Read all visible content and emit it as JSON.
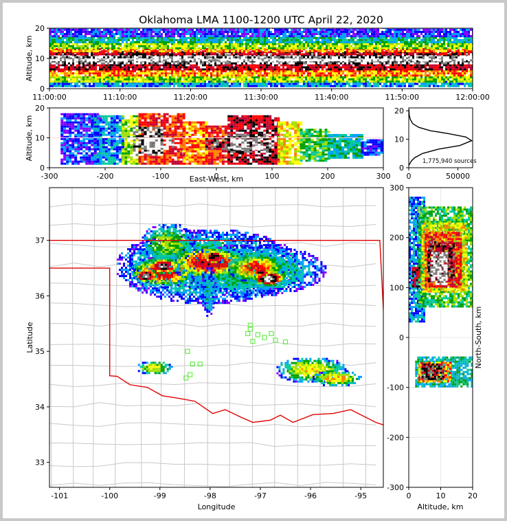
{
  "title": "Oklahoma LMA 1100-1200 UTC April 22, 2020",
  "colors": {
    "state_border": "#e00000",
    "county_lines": "#c8c8c8",
    "stations": "#66ee44",
    "density_scale": [
      "#8000ff",
      "#0000ff",
      "#00a0ff",
      "#00c8a0",
      "#00a000",
      "#a0e000",
      "#ffff00",
      "#ff8000",
      "#ff0000",
      "#c00030",
      "#000000",
      "#808080",
      "#ffffff"
    ]
  },
  "chart_data": [
    {
      "id": "time-height",
      "type": "heatmap",
      "ylabel": "Altitude, km",
      "ylim": [
        0,
        20
      ],
      "xlim": [
        "11:00:00",
        "12:00:00"
      ],
      "x_ticks": [
        "11:00:00",
        "11:10:00",
        "11:20:00",
        "11:30:00",
        "11:40:00",
        "11:50:00",
        "12:00:00"
      ],
      "y_ticks": [
        0,
        10,
        20
      ],
      "layers_km": [
        [
          0.5,
          2,
          2
        ],
        [
          2,
          4,
          5
        ],
        [
          4,
          6,
          7
        ],
        [
          6,
          8,
          9
        ],
        [
          8,
          9,
          11
        ],
        [
          9,
          10,
          12
        ],
        [
          10,
          11,
          11
        ],
        [
          11,
          12,
          9
        ],
        [
          12,
          13,
          7
        ],
        [
          13,
          15,
          5
        ],
        [
          15,
          17,
          3
        ],
        [
          17,
          20,
          1
        ]
      ]
    },
    {
      "id": "ew-altitude",
      "type": "heatmap",
      "xlabel": "East-West, km",
      "ylabel": "Altitude, km",
      "xlim": [
        -300,
        300
      ],
      "ylim": [
        0,
        20
      ],
      "x_ticks": [
        -300,
        -200,
        -100,
        0,
        100,
        200,
        300
      ],
      "y_ticks": [
        0,
        10,
        20
      ],
      "cells": [
        [
          -280,
          -210,
          1,
          18,
          1
        ],
        [
          -220,
          -170,
          1,
          17,
          2
        ],
        [
          -170,
          -140,
          1,
          17,
          5
        ],
        [
          -140,
          -60,
          1,
          18,
          8
        ],
        [
          -60,
          -20,
          1,
          15,
          7
        ],
        [
          -20,
          20,
          1,
          14,
          8
        ],
        [
          20,
          110,
          1,
          17,
          9
        ],
        [
          110,
          150,
          1,
          15,
          6
        ],
        [
          150,
          200,
          2,
          13,
          4
        ],
        [
          200,
          260,
          3,
          11,
          3
        ],
        [
          260,
          295,
          4,
          9,
          1
        ],
        [
          -150,
          -100,
          4,
          13,
          11
        ],
        [
          -130,
          -80,
          6,
          10,
          12
        ],
        [
          -20,
          20,
          6,
          10,
          10
        ],
        [
          20,
          100,
          5,
          11,
          11
        ],
        [
          30,
          80,
          6,
          9,
          12
        ]
      ]
    },
    {
      "id": "altitude-histogram",
      "type": "line",
      "annotation": "1,775,940 sources",
      "xlim": [
        0,
        65000
      ],
      "ylim": [
        0,
        21
      ],
      "x_ticks": [
        0,
        50000
      ],
      "y_ticks": [
        0,
        10,
        20
      ],
      "x": [
        0,
        1200,
        2500,
        6000,
        14000,
        30000,
        52000,
        64000,
        58000,
        40000,
        22000,
        10000,
        4000,
        1500,
        500,
        100
      ],
      "y": [
        0.8,
        1.5,
        2.3,
        3.5,
        5.0,
        6.5,
        7.8,
        9.5,
        10.8,
        12.0,
        13.0,
        14.2,
        15.5,
        17.0,
        18.5,
        20.5
      ]
    },
    {
      "id": "map",
      "type": "heatmap",
      "xlabel": "Longitude",
      "ylabel": "Latitude",
      "xlim": [
        -101.2,
        -94.55
      ],
      "ylim": [
        32.55,
        37.95
      ],
      "x_ticks": [
        -101,
        -100,
        -99,
        -98,
        -97,
        -96,
        -95
      ],
      "y_ticks": [
        33,
        34,
        35,
        36,
        37
      ],
      "stations": [
        [
          -98.45,
          35.0
        ],
        [
          -98.35,
          34.77
        ],
        [
          -98.4,
          34.58
        ],
        [
          -98.48,
          34.52
        ],
        [
          -98.2,
          34.77
        ],
        [
          -97.2,
          35.47
        ],
        [
          -97.05,
          35.3
        ],
        [
          -97.15,
          35.18
        ],
        [
          -97.25,
          35.32
        ],
        [
          -97.2,
          35.4
        ],
        [
          -96.92,
          35.25
        ],
        [
          -96.78,
          35.32
        ],
        [
          -96.7,
          35.2
        ],
        [
          -96.5,
          35.17
        ]
      ],
      "blobs": [
        [
          -98.05,
          36.55,
          1.85,
          0.68,
          4
        ],
        [
          -97.25,
          36.48,
          1.55,
          0.48,
          4
        ],
        [
          -98.85,
          36.95,
          0.55,
          0.38,
          5
        ],
        [
          -98.95,
          36.45,
          0.65,
          0.28,
          9
        ],
        [
          -98.05,
          36.62,
          0.78,
          0.3,
          9
        ],
        [
          -97.1,
          36.52,
          0.58,
          0.26,
          8
        ],
        [
          -99.3,
          36.38,
          0.24,
          0.13,
          11
        ],
        [
          -98.95,
          36.55,
          0.32,
          0.14,
          11
        ],
        [
          -97.95,
          36.72,
          0.2,
          0.13,
          11
        ],
        [
          -96.85,
          36.33,
          0.32,
          0.14,
          12
        ],
        [
          -97.0,
          36.44,
          0.18,
          0.07,
          11
        ],
        [
          -98.05,
          36.1,
          0.15,
          0.45,
          3
        ],
        [
          -99.12,
          34.72,
          0.36,
          0.13,
          6
        ],
        [
          -96.0,
          34.68,
          0.72,
          0.24,
          6
        ],
        [
          -95.5,
          34.53,
          0.5,
          0.14,
          7
        ]
      ],
      "ok_border": [
        [
          -103,
          37.0
        ],
        [
          -94.62,
          37.0
        ],
        [
          -94.43,
          33.64
        ],
        [
          -94.7,
          33.72
        ],
        [
          -95.2,
          33.95
        ],
        [
          -95.55,
          33.88
        ],
        [
          -95.95,
          33.86
        ],
        [
          -96.35,
          33.72
        ],
        [
          -96.6,
          33.85
        ],
        [
          -96.8,
          33.76
        ],
        [
          -97.15,
          33.72
        ],
        [
          -97.4,
          33.82
        ],
        [
          -97.7,
          33.95
        ],
        [
          -97.95,
          33.88
        ],
        [
          -98.3,
          34.1
        ],
        [
          -98.6,
          34.15
        ],
        [
          -98.95,
          34.2
        ],
        [
          -99.25,
          34.35
        ],
        [
          -99.6,
          34.4
        ],
        [
          -99.85,
          34.55
        ],
        [
          -100.0,
          34.56
        ],
        [
          -100.0,
          36.5
        ],
        [
          -103,
          36.5
        ]
      ]
    },
    {
      "id": "ns-altitude",
      "type": "heatmap",
      "xlabel": "Altitude, km",
      "ylabel": "North-South, km",
      "xlim": [
        0,
        20
      ],
      "ylim": [
        -300,
        300
      ],
      "x_ticks": [
        0,
        10,
        20
      ],
      "y_ticks": [
        -300,
        -200,
        -100,
        0,
        100,
        200,
        300
      ],
      "cells": [
        [
          0,
          5,
          30,
          280,
          2
        ],
        [
          3,
          20,
          60,
          260,
          4
        ],
        [
          4,
          18,
          90,
          230,
          6
        ],
        [
          5,
          16,
          100,
          210,
          8
        ],
        [
          6,
          14,
          110,
          190,
          10
        ],
        [
          7,
          12,
          105,
          170,
          12
        ],
        [
          1,
          3,
          100,
          140,
          9
        ],
        [
          2,
          20,
          -100,
          -40,
          3
        ],
        [
          3,
          13,
          -90,
          -50,
          7
        ],
        [
          4,
          11,
          -85,
          -55,
          10
        ]
      ]
    }
  ]
}
